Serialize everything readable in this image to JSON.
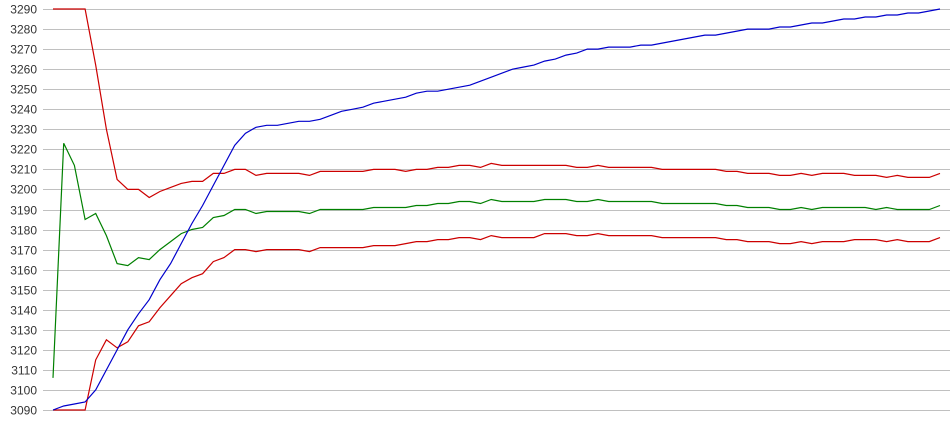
{
  "chart_data": {
    "type": "line",
    "title": "",
    "xlabel": "",
    "ylabel": "",
    "ylim": [
      3090,
      3290
    ],
    "yticks": [
      3090,
      3100,
      3110,
      3120,
      3130,
      3140,
      3150,
      3160,
      3170,
      3180,
      3190,
      3200,
      3210,
      3220,
      3230,
      3240,
      3250,
      3260,
      3270,
      3280,
      3290
    ],
    "grid": "horizontal",
    "x": [
      0,
      1,
      2,
      3,
      4,
      5,
      6,
      7,
      8,
      9,
      10,
      11,
      12,
      13,
      14,
      15,
      16,
      17,
      18,
      19,
      20,
      21,
      22,
      23,
      24,
      25,
      26,
      27,
      28,
      29,
      30,
      31,
      32,
      33,
      34,
      35,
      36,
      37,
      38,
      39,
      40,
      41,
      42,
      43,
      44,
      45,
      46,
      47,
      48,
      49,
      50,
      51,
      52,
      53,
      54,
      55,
      56,
      57,
      58,
      59,
      60,
      61,
      62,
      63,
      64,
      65,
      66,
      67,
      68,
      69,
      70,
      71,
      72,
      73,
      74,
      75,
      76,
      77,
      78,
      79,
      80,
      81,
      82,
      83
    ],
    "series": [
      {
        "color": "#cc0000",
        "values": [
          3290,
          3290,
          3290,
          3290,
          3262,
          3230,
          3205,
          3200,
          3200,
          3196,
          3199,
          3201,
          3203,
          3204,
          3204,
          3208,
          3208,
          3210,
          3210,
          3207,
          3208,
          3208,
          3208,
          3208,
          3207,
          3209,
          3209,
          3209,
          3209,
          3209,
          3210,
          3210,
          3210,
          3209,
          3210,
          3210,
          3211,
          3211,
          3212,
          3212,
          3211,
          3213,
          3212,
          3212,
          3212,
          3212,
          3212,
          3212,
          3212,
          3211,
          3211,
          3212,
          3211,
          3211,
          3211,
          3211,
          3211,
          3210,
          3210,
          3210,
          3210,
          3210,
          3210,
          3209,
          3209,
          3208,
          3208,
          3208,
          3207,
          3207,
          3208,
          3207,
          3208,
          3208,
          3208,
          3207,
          3207,
          3207,
          3206,
          3207,
          3206,
          3206,
          3206,
          3208
        ]
      },
      {
        "color": "#008000",
        "values": [
          3106,
          3223,
          3212,
          3185,
          3188,
          3177,
          3163,
          3162,
          3166,
          3165,
          3170,
          3174,
          3178,
          3180,
          3181,
          3186,
          3187,
          3190,
          3190,
          3188,
          3189,
          3189,
          3189,
          3189,
          3188,
          3190,
          3190,
          3190,
          3190,
          3190,
          3191,
          3191,
          3191,
          3191,
          3192,
          3192,
          3193,
          3193,
          3194,
          3194,
          3193,
          3195,
          3194,
          3194,
          3194,
          3194,
          3195,
          3195,
          3195,
          3194,
          3194,
          3195,
          3194,
          3194,
          3194,
          3194,
          3194,
          3193,
          3193,
          3193,
          3193,
          3193,
          3193,
          3192,
          3192,
          3191,
          3191,
          3191,
          3190,
          3190,
          3191,
          3190,
          3191,
          3191,
          3191,
          3191,
          3191,
          3190,
          3191,
          3190,
          3190,
          3190,
          3190,
          3192
        ]
      },
      {
        "color": "#cc0000",
        "values": [
          3090,
          3090,
          3090,
          3090,
          3115,
          3125,
          3121,
          3124,
          3132,
          3134,
          3141,
          3147,
          3153,
          3156,
          3158,
          3164,
          3166,
          3170,
          3170,
          3169,
          3170,
          3170,
          3170,
          3170,
          3169,
          3171,
          3171,
          3171,
          3171,
          3171,
          3172,
          3172,
          3172,
          3173,
          3174,
          3174,
          3175,
          3175,
          3176,
          3176,
          3175,
          3177,
          3176,
          3176,
          3176,
          3176,
          3178,
          3178,
          3178,
          3177,
          3177,
          3178,
          3177,
          3177,
          3177,
          3177,
          3177,
          3176,
          3176,
          3176,
          3176,
          3176,
          3176,
          3175,
          3175,
          3174,
          3174,
          3174,
          3173,
          3173,
          3174,
          3173,
          3174,
          3174,
          3174,
          3175,
          3175,
          3175,
          3174,
          3175,
          3174,
          3174,
          3174,
          3176
        ]
      },
      {
        "color": "#0000cc",
        "values": [
          3090,
          3092,
          3093,
          3094,
          3100,
          3110,
          3120,
          3130,
          3138,
          3145,
          3155,
          3163,
          3173,
          3183,
          3192,
          3202,
          3212,
          3222,
          3228,
          3231,
          3232,
          3232,
          3233,
          3234,
          3234,
          3235,
          3237,
          3239,
          3240,
          3241,
          3243,
          3244,
          3245,
          3246,
          3248,
          3249,
          3249,
          3250,
          3251,
          3252,
          3254,
          3256,
          3258,
          3260,
          3261,
          3262,
          3264,
          3265,
          3267,
          3268,
          3270,
          3270,
          3271,
          3271,
          3271,
          3272,
          3272,
          3273,
          3274,
          3275,
          3276,
          3277,
          3277,
          3278,
          3279,
          3280,
          3280,
          3280,
          3281,
          3281,
          3282,
          3283,
          3283,
          3284,
          3285,
          3285,
          3286,
          3286,
          3287,
          3287,
          3288,
          3288,
          3289,
          3290
        ]
      }
    ]
  }
}
